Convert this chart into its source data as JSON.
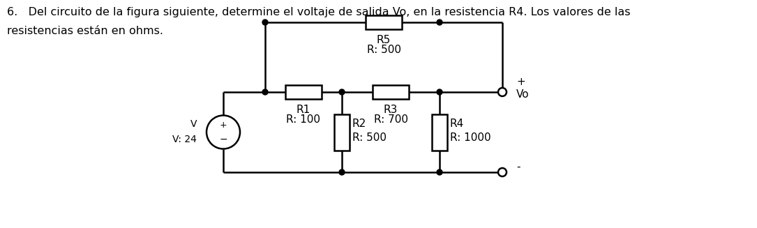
{
  "title_line1": "6.   Del circuito de la figura siguiente, determine el voltaje de salida Vo, en la resistencia R4. Los valores de las",
  "title_line2": "resistencias están en ohms.",
  "bg_color": "#ffffff",
  "line_color": "#000000",
  "text_color": "#000000",
  "lw": 1.8,
  "circuit": {
    "vs_label_v": "V",
    "vs_label_val": "V: 24",
    "R1_name": "R1",
    "R1_val": "R: 100",
    "R2_name": "R2",
    "R2_val": "R: 500",
    "R3_name": "R3",
    "R3_val": "R: 700",
    "R4_name": "R4",
    "R4_val": "R: 1000",
    "R5_name": "R5",
    "R5_val": "R: 500",
    "Vo_plus": "+",
    "Vo_label": "Vo",
    "Vo_minus": "-"
  }
}
